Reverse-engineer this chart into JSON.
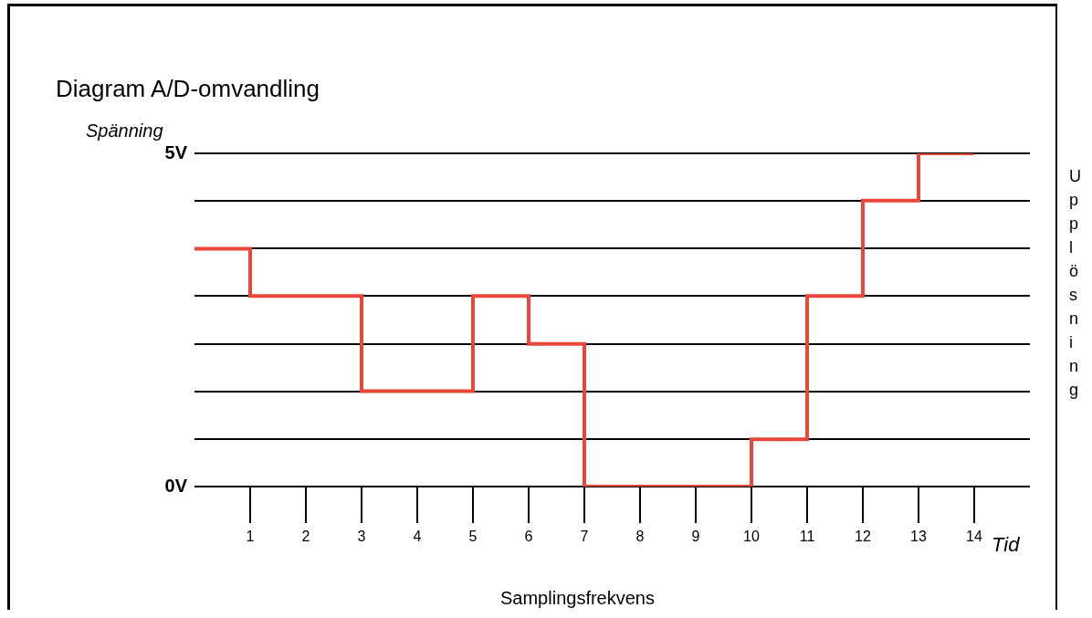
{
  "chart_data": {
    "type": "step",
    "title": "Diagram A/D-omvandling",
    "xlabel": "Tid",
    "ylabel": "Spänning",
    "annotations": [
      "Samplingsfrekvens",
      "Upplösning"
    ],
    "x": [
      0,
      1,
      2,
      3,
      4,
      5,
      6,
      7,
      8,
      9,
      10,
      11,
      12,
      13,
      14
    ],
    "series": [
      {
        "color": "#e8473a",
        "values": [
          3.57,
          2.86,
          2.86,
          1.43,
          1.43,
          2.86,
          2.14,
          0,
          0,
          0,
          0.71,
          2.86,
          4.29,
          5,
          5
        ]
      }
    ],
    "xlim": [
      0,
      15
    ],
    "xticks": [
      1,
      2,
      3,
      4,
      5,
      6,
      7,
      8,
      9,
      10,
      11,
      12,
      13,
      14
    ],
    "ylim": [
      0,
      5
    ],
    "yticks": [
      {
        "value": 0,
        "label": "0V"
      },
      {
        "value": 0.71,
        "label": null
      },
      {
        "value": 1.43,
        "label": null
      },
      {
        "value": 2.14,
        "label": null
      },
      {
        "value": 2.86,
        "label": null
      },
      {
        "value": 3.57,
        "label": null
      },
      {
        "value": 4.29,
        "label": null
      },
      {
        "value": 5,
        "label": "5V"
      }
    ],
    "grid": "y",
    "legend": false
  }
}
